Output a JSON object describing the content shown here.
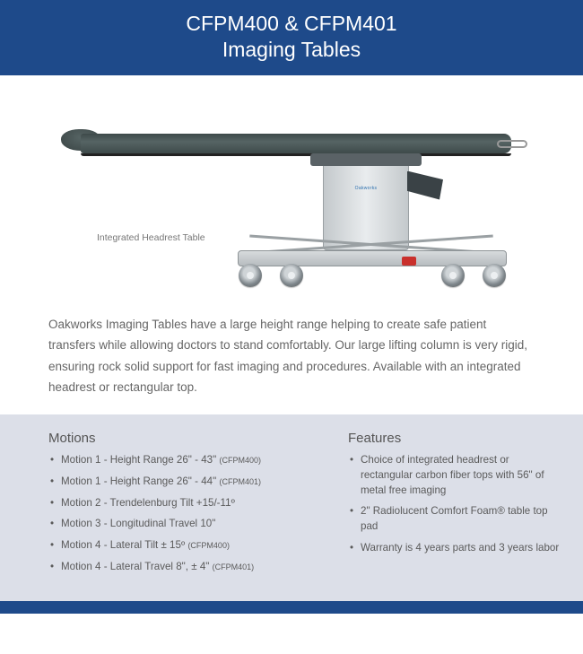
{
  "colors": {
    "header_bg": "#1e4a8a",
    "panel_bg": "#dcdfe8",
    "text": "#555555",
    "tabletop": "#4a5656",
    "column": "#d7dbdd",
    "accent_red": "#c9302c"
  },
  "header": {
    "line1": "CFPM400 & CFPM401",
    "line2": "Imaging Tables"
  },
  "figure": {
    "caption": "Integrated Headrest Table",
    "column_brand": "Oakworks"
  },
  "intro": "Oakworks Imaging Tables have a large height range helping to create safe patient transfers while allowing doctors to stand comfortably. Our large lifting column is very rigid, ensuring rock solid support for fast imaging and procedures. Available with an integrated headrest or rectangular top.",
  "motions": {
    "heading": "Motions",
    "items": [
      {
        "text": "Motion 1 - Height Range 26\" - 43\"",
        "sub": "(CFPM400)"
      },
      {
        "text": "Motion 1 - Height Range 26\" - 44\"",
        "sub": "(CFPM401)"
      },
      {
        "text": "Motion 2 - Trendelenburg Tilt +15/-11º",
        "sub": ""
      },
      {
        "text": "Motion 3 - Longitudinal Travel 10\"",
        "sub": ""
      },
      {
        "text": "Motion 4 - Lateral Tilt ± 15º",
        "sub": "(CFPM400)"
      },
      {
        "text": "Motion 4 - Lateral Travel 8\", ± 4\"",
        "sub": "(CFPM401)"
      }
    ]
  },
  "features": {
    "heading": "Features",
    "items": [
      {
        "text": "Choice of integrated headrest or rectangular carbon fiber tops with 56\" of metal free imaging"
      },
      {
        "text": "2\" Radiolucent Comfort Foam® table top pad"
      },
      {
        "text": "Warranty is 4 years parts and 3 years labor"
      }
    ]
  }
}
